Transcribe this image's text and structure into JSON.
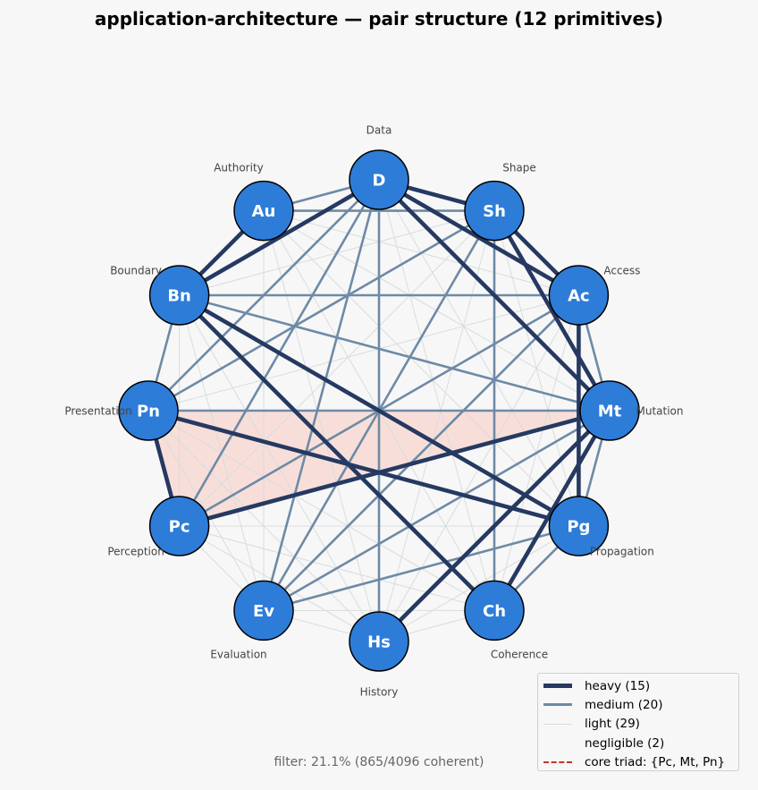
{
  "title": "application-architecture — pair structure  (12 primitives)",
  "footer": "filter: 21.1%  (865/4096 coherent)",
  "colors": {
    "node_fill": "#2d7cd8",
    "node_stroke": "#000000",
    "node_text": "#ffffff",
    "heavy": "#253961",
    "medium": "#6e8aa6",
    "light": "#d8dcdf",
    "triad_fill": "#f8d9d3",
    "triad_line": "#c0392b",
    "background": "#f7f7f7"
  },
  "nodes": [
    {
      "id": "D",
      "label": "Data"
    },
    {
      "id": "Sh",
      "label": "Shape"
    },
    {
      "id": "Ac",
      "label": "Access"
    },
    {
      "id": "Mt",
      "label": "Mutation"
    },
    {
      "id": "Pg",
      "label": "Propagation"
    },
    {
      "id": "Ch",
      "label": "Coherence"
    },
    {
      "id": "Hs",
      "label": "History"
    },
    {
      "id": "Ev",
      "label": "Evaluation"
    },
    {
      "id": "Pc",
      "label": "Perception"
    },
    {
      "id": "Pn",
      "label": "Presentation"
    },
    {
      "id": "Bn",
      "label": "Boundary"
    },
    {
      "id": "Au",
      "label": "Authority"
    }
  ],
  "core_triad": [
    "Pc",
    "Mt",
    "Pn"
  ],
  "edges": {
    "heavy": [
      [
        "D",
        "Sh"
      ],
      [
        "D",
        "Ac"
      ],
      [
        "D",
        "Mt"
      ],
      [
        "D",
        "Bn"
      ],
      [
        "Au",
        "Bn"
      ],
      [
        "Sh",
        "Ac"
      ],
      [
        "Sh",
        "Mt"
      ],
      [
        "Bn",
        "Pg"
      ],
      [
        "Bn",
        "Ch"
      ],
      [
        "Pn",
        "Pg"
      ],
      [
        "Pn",
        "Pc"
      ],
      [
        "Pc",
        "Mt"
      ],
      [
        "Mt",
        "Hs"
      ],
      [
        "Mt",
        "Ch"
      ],
      [
        "Ac",
        "Pg"
      ]
    ],
    "medium": [
      [
        "Au",
        "D"
      ],
      [
        "Au",
        "Sh"
      ],
      [
        "D",
        "Hs"
      ],
      [
        "D",
        "Pn"
      ],
      [
        "D",
        "Pc"
      ],
      [
        "D",
        "Ev"
      ],
      [
        "Sh",
        "Pn"
      ],
      [
        "Sh",
        "Ev"
      ],
      [
        "Sh",
        "Ch"
      ],
      [
        "Bn",
        "Ac"
      ],
      [
        "Bn",
        "Mt"
      ],
      [
        "Bn",
        "Pn"
      ],
      [
        "Pn",
        "Mt"
      ],
      [
        "Ac",
        "Ev"
      ],
      [
        "Ac",
        "Mt"
      ],
      [
        "Ac",
        "Pc"
      ],
      [
        "Mt",
        "Pg"
      ],
      [
        "Mt",
        "Ev"
      ],
      [
        "Pg",
        "Ev"
      ],
      [
        "Pg",
        "Ch"
      ]
    ],
    "light": [
      [
        "D",
        "Ch"
      ],
      [
        "D",
        "Pg"
      ],
      [
        "Sh",
        "Hs"
      ],
      [
        "Sh",
        "Pg"
      ],
      [
        "Sh",
        "Pc"
      ],
      [
        "Sh",
        "Bn"
      ],
      [
        "Ac",
        "Hs"
      ],
      [
        "Ac",
        "Ch"
      ],
      [
        "Ac",
        "Pn"
      ],
      [
        "Ac",
        "Au"
      ],
      [
        "Mt",
        "Au"
      ],
      [
        "Pg",
        "Hs"
      ],
      [
        "Pg",
        "Pc"
      ],
      [
        "Pg",
        "Au"
      ],
      [
        "Ch",
        "Hs"
      ],
      [
        "Ch",
        "Ev"
      ],
      [
        "Ch",
        "Pc"
      ],
      [
        "Ch",
        "Pn"
      ],
      [
        "Ch",
        "Au"
      ],
      [
        "Hs",
        "Ev"
      ],
      [
        "Hs",
        "Pc"
      ],
      [
        "Hs",
        "Pn"
      ],
      [
        "Hs",
        "Bn"
      ],
      [
        "Hs",
        "Au"
      ],
      [
        "Ev",
        "Pc"
      ],
      [
        "Ev",
        "Pn"
      ],
      [
        "Ev",
        "Bn"
      ],
      [
        "Ev",
        "Au"
      ],
      [
        "Pc",
        "Bn"
      ]
    ]
  },
  "legend": [
    {
      "style": "heavy",
      "label": "heavy (15)"
    },
    {
      "style": "medium",
      "label": "medium (20)"
    },
    {
      "style": "light",
      "label": "light (29)"
    },
    {
      "style": "negligible",
      "label": "negligible (2)"
    },
    {
      "style": "triad",
      "label": "core triad: {Pc, Mt, Pn}"
    }
  ]
}
